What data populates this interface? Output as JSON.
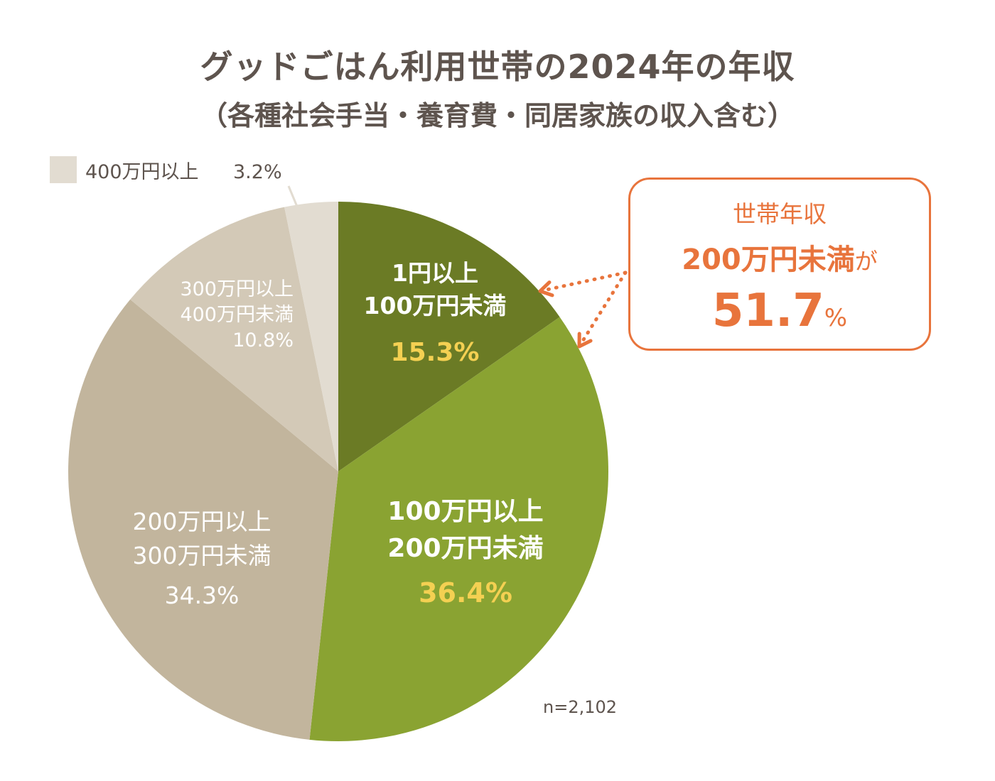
{
  "title": "グッドごはん利用世帯の2024年の年収",
  "subtitle": "（各種社会手当・養育費・同居家族の収入含む）",
  "chart_data": {
    "type": "pie",
    "title": "グッドごはん利用世帯の2024年の年収",
    "subtitle": "（各種社会手当・養育費・同居家族の収入含む）",
    "unit": "%",
    "slices": [
      {
        "label_lines": [
          "1円以上",
          "100万円未満"
        ],
        "value": 15.3,
        "value_label": "15.3%",
        "color": "#6b7b25",
        "label_color": "#ffffff",
        "value_color": "#f4d052"
      },
      {
        "label_lines": [
          "100万円以上",
          "200万円未満"
        ],
        "value": 36.4,
        "value_label": "36.4%",
        "color": "#8aa332",
        "label_color": "#ffffff",
        "value_color": "#f4d052"
      },
      {
        "label_lines": [
          "200万円以上",
          "300万円未満"
        ],
        "value": 34.3,
        "value_label": "34.3%",
        "color": "#c2b59d",
        "label_color": "#ffffff",
        "value_color": "#ffffff"
      },
      {
        "label_lines": [
          "300万円以上",
          "400万円未満"
        ],
        "value": 10.8,
        "value_label": "10.8%",
        "color": "#d3c9b7",
        "label_color": "#ffffff",
        "value_color": "#ffffff"
      },
      {
        "label_lines": [
          "400万円以上"
        ],
        "value": 3.2,
        "value_label": "3.2%",
        "color": "#e2dcd1",
        "label_color": "#5e544e",
        "value_color": "#5e544e",
        "external": true
      }
    ],
    "sample_size": "n=2,102"
  },
  "callout": {
    "label": "世帯年収",
    "threshold": "200万円未満",
    "particle": "が",
    "value": "51.7",
    "unit": "%",
    "color": "#e8743c"
  }
}
